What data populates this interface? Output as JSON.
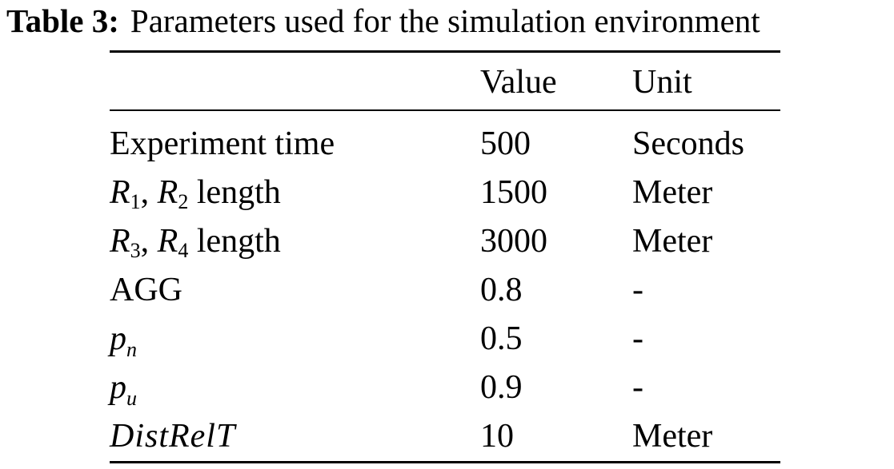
{
  "caption": {
    "label": "Table 3:",
    "text": "Parameters used for the simulation environment"
  },
  "table": {
    "headers": [
      "",
      "Value",
      "Unit"
    ],
    "rows": [
      {
        "param": "Experiment time",
        "value": "500",
        "unit": "Seconds"
      },
      {
        "param": "R1, R2 length",
        "value": "1500",
        "unit": "Meter"
      },
      {
        "param": "R3, R4 length",
        "value": "3000",
        "unit": "Meter"
      },
      {
        "param": "AGG",
        "value": "0.8",
        "unit": "-"
      },
      {
        "param": "pn",
        "value": "0.5",
        "unit": "-"
      },
      {
        "param": "pu",
        "value": "0.9",
        "unit": "-"
      },
      {
        "param": "DistRelT",
        "value": "10",
        "unit": "Meter"
      }
    ]
  },
  "symbols": {
    "R": "R",
    "s1": "1",
    "s2": "2",
    "s3": "3",
    "s4": "4",
    "comma": ", ",
    "length": " length",
    "p": "p",
    "n": "n",
    "u": "u"
  }
}
